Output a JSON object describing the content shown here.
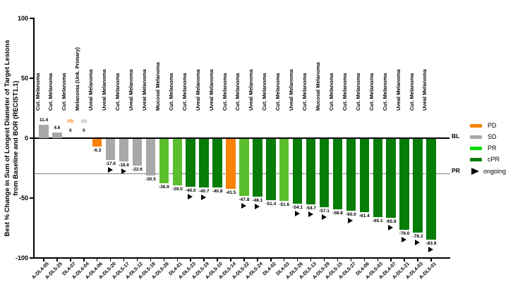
{
  "chart_data": {
    "type": "bar",
    "title": "",
    "ylabel_line1": "Best % Change in Sum of Longest Diameter of Target Lesions",
    "ylabel_line2": "from Baseline and BOR (RECIST1.1)",
    "ylim": [
      -100,
      100
    ],
    "yticks": [
      100,
      50,
      0,
      -50,
      -100
    ],
    "grid": false,
    "legend_position": "right",
    "reference_lines": [
      {
        "label": "BL",
        "value": 0,
        "style": "solid"
      },
      {
        "label": "PR",
        "value": -30,
        "style": "dotted"
      }
    ],
    "legend": [
      {
        "label": "PD",
        "marker": "line",
        "color": "#F9820A"
      },
      {
        "label": "SD",
        "marker": "line",
        "color": "#A8A8A8"
      },
      {
        "label": "PR",
        "marker": "line",
        "color": "#00DC00"
      },
      {
        "label": "cPR",
        "marker": "line",
        "color": "#0B7C0B"
      },
      {
        "label": "ongoing",
        "marker": "triangle",
        "color": "#000000"
      }
    ],
    "bor_colors": {
      "PD": "#F9820A",
      "SD": "#A8A8A8",
      "PR": "#5BBE2D",
      "cPR": "#077C07"
    },
    "bars": [
      {
        "id": "A-DL4-05",
        "diagnosis": "Cut. Melanoma",
        "value": 11.4,
        "bor": "SD",
        "ongoing": false
      },
      {
        "id": "A-DL5-25",
        "diagnosis": "Cut. Melanoma",
        "value": 4.6,
        "bor": "SD",
        "ongoing": false
      },
      {
        "id": "DL4-07",
        "diagnosis": "Cut. Melanoma",
        "value": 0,
        "bor": "PD",
        "ongoing": false
      },
      {
        "id": "A-DL4-04",
        "diagnosis": "Melanoma (Unk. Primary)",
        "value": 0,
        "bor": "SD",
        "ongoing": false
      },
      {
        "id": "A-DL4-06",
        "diagnosis": "Uveal Melanoma",
        "value": -6.3,
        "bor": "PD",
        "ongoing": false
      },
      {
        "id": "A-DL5-20",
        "diagnosis": "Uveal Melanoma",
        "value": -17.6,
        "bor": "SD",
        "ongoing": true
      },
      {
        "id": "A-DL5-17",
        "diagnosis": "Cut. Melanoma",
        "value": -18.6,
        "bor": "SD",
        "ongoing": true
      },
      {
        "id": "A-DL5-12",
        "diagnosis": "Uveal Melanoma",
        "value": -22.6,
        "bor": "SD",
        "ongoing": false
      },
      {
        "id": "A-DL5-18",
        "diagnosis": "Uveal Melanoma",
        "value": -30.5,
        "bor": "SD",
        "ongoing": false
      },
      {
        "id": "A-DL5-28",
        "diagnosis": "Mucosal Melanoma",
        "value": -36.9,
        "bor": "PR",
        "ongoing": false
      },
      {
        "id": "DL4-01",
        "diagnosis": "Cut. Melanoma",
        "value": -39.0,
        "bor": "PR",
        "ongoing": false
      },
      {
        "id": "A-DL5-23",
        "diagnosis": "Cut. Melanoma",
        "value": -40.0,
        "bor": "cPR",
        "ongoing": true
      },
      {
        "id": "A-DL5-19",
        "diagnosis": "Uveal Melanoma",
        "value": -40.7,
        "bor": "cPR",
        "ongoing": true
      },
      {
        "id": "A-DL5-10",
        "diagnosis": "Uveal Melanoma",
        "value": -40.8,
        "bor": "cPR",
        "ongoing": false
      },
      {
        "id": "A-DL5-14",
        "diagnosis": "Cut. Melanoma",
        "value": -41.5,
        "bor": "PD",
        "ongoing": false
      },
      {
        "id": "A-DL5-22",
        "diagnosis": "Cut. Melanoma",
        "value": -47.8,
        "bor": "PR",
        "ongoing": true
      },
      {
        "id": "A-DL5-24",
        "diagnosis": "Uveal Melanoma",
        "value": -48.1,
        "bor": "cPR",
        "ongoing": true
      },
      {
        "id": "DL4-02",
        "diagnosis": "Cut. Melanoma",
        "value": -51.4,
        "bor": "cPR",
        "ongoing": false
      },
      {
        "id": "DL4-03",
        "diagnosis": "Cut. Melanoma",
        "value": -51.6,
        "bor": "PR",
        "ongoing": false
      },
      {
        "id": "A-DL5-26",
        "diagnosis": "Uveal Melanoma",
        "value": -54.1,
        "bor": "cPR",
        "ongoing": true
      },
      {
        "id": "A-DL5-13",
        "diagnosis": "Cut. Melanoma",
        "value": -54.7,
        "bor": "cPR",
        "ongoing": true
      },
      {
        "id": "A-DL5-29",
        "diagnosis": "Mucosal Melanoma",
        "value": -57.1,
        "bor": "cPR",
        "ongoing": true
      },
      {
        "id": "A-DL5-15",
        "diagnosis": "Cut. Melanoma",
        "value": -58.8,
        "bor": "cPR",
        "ongoing": false
      },
      {
        "id": "A-DL5-27",
        "diagnosis": "Cut. Melanoma",
        "value": -60.0,
        "bor": "cPR",
        "ongoing": true
      },
      {
        "id": "DL4-06",
        "diagnosis": "Cut. Melanoma",
        "value": -61.4,
        "bor": "cPR",
        "ongoing": false
      },
      {
        "id": "A-DL5-03",
        "diagnosis": "Cut. Melanoma",
        "value": -65.1,
        "bor": "cPR",
        "ongoing": false
      },
      {
        "id": "A-DL4-07",
        "diagnosis": "Cut. Melanoma",
        "value": -65.9,
        "bor": "cPR",
        "ongoing": true
      },
      {
        "id": "A-DL5-21",
        "diagnosis": "Uveal Melanoma",
        "value": -76.0,
        "bor": "cPR",
        "ongoing": true
      },
      {
        "id": "A-DL4-03",
        "diagnosis": "Cut. Melanoma",
        "value": -78.3,
        "bor": "cPR",
        "ongoing": true
      },
      {
        "id": "A-DL5-01",
        "diagnosis": "Uveal Melanoma",
        "value": -83.9,
        "bor": "cPR",
        "ongoing": true
      }
    ]
  }
}
